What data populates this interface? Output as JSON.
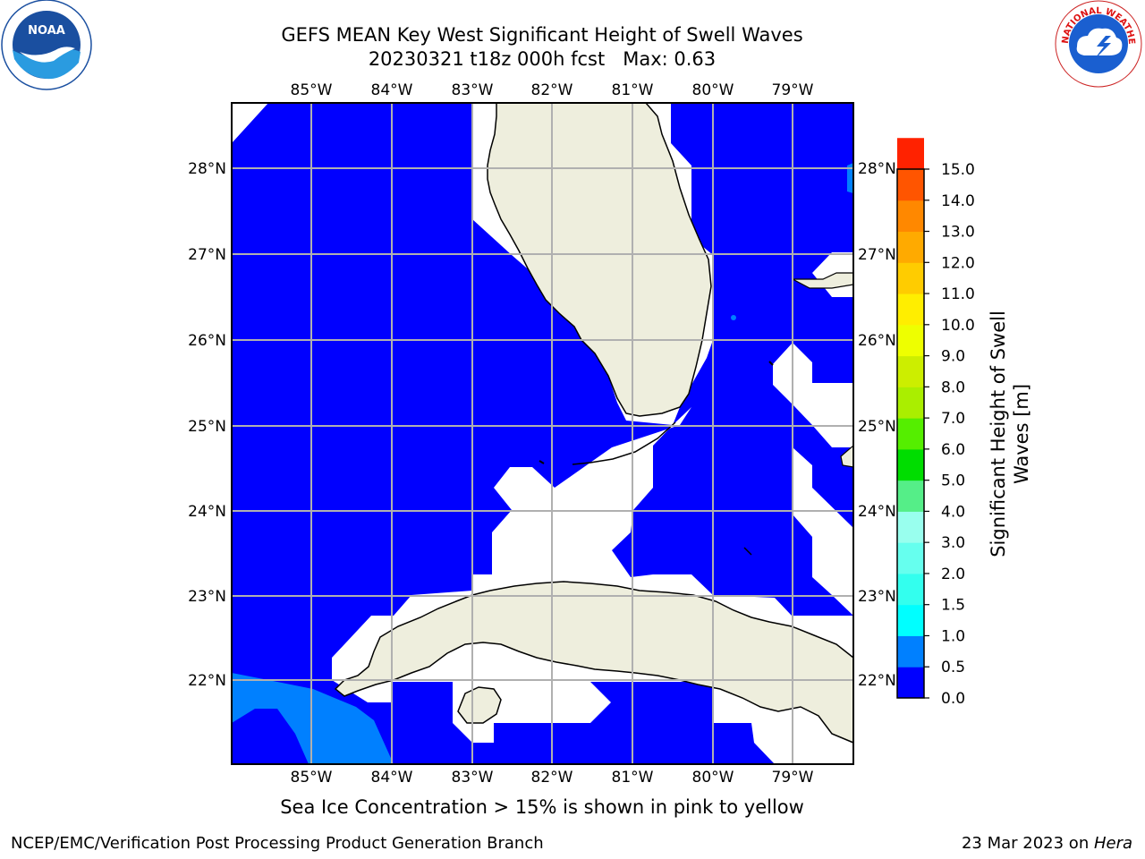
{
  "title": {
    "line1": "GEFS MEAN Key West Significant Height of Swell Waves",
    "line2": "20230321 t18z 000h fcst   Max: 0.63"
  },
  "caption": "Sea Ice Concentration > 15% is shown in pink to yellow",
  "footer": {
    "left": "NCEP/EMC/Verification Post Processing Product Generation Branch",
    "right_date": "23 Mar 2023 on ",
    "right_host": "Hera"
  },
  "logos": {
    "noaa_text": "NOAA",
    "nws_text": "NATIONAL WEATHER SERVICE"
  },
  "map": {
    "lon_ticks": [
      "85°W",
      "84°W",
      "83°W",
      "82°W",
      "81°W",
      "80°W",
      "79°W"
    ],
    "lat_ticks": [
      "28°N",
      "27°N",
      "26°N",
      "25°N",
      "24°N",
      "23°N",
      "22°N"
    ],
    "ocean_color": "#0000ff",
    "swell_0_5_color": "#0080ff",
    "land_color": "#eeeedd",
    "nodata_color": "#ffffff"
  },
  "colorbar": {
    "label_line1": "Significant Height of Swell",
    "label_line2": "Waves [m]",
    "ticks": [
      "0.0",
      "0.5",
      "1.0",
      "1.5",
      "2.0",
      "3.0",
      "4.0",
      "5.0",
      "6.0",
      "7.0",
      "8.0",
      "9.0",
      "10.0",
      "11.0",
      "12.0",
      "13.0",
      "14.0",
      "15.0"
    ],
    "colors": [
      "#0000ff",
      "#0080ff",
      "#00ffff",
      "#33ffee",
      "#66ffee",
      "#99ffee",
      "#55ee88",
      "#00dd00",
      "#55ee00",
      "#aaee00",
      "#ccee00",
      "#eeff00",
      "#ffee00",
      "#ffcc00",
      "#ffaa00",
      "#ff8800",
      "#ff5500",
      "#ff2200"
    ]
  }
}
